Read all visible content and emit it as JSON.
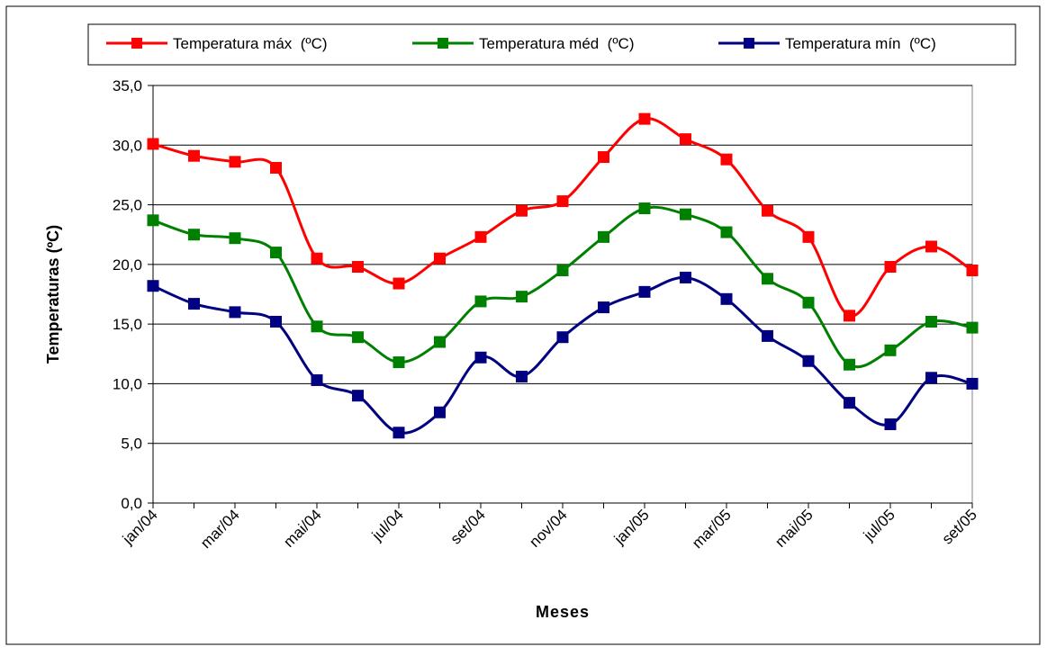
{
  "chart_data": {
    "type": "line",
    "categories": [
      "jan/04",
      null,
      "mar/04",
      null,
      "mai/04",
      null,
      "jul/04",
      null,
      "set/04",
      null,
      "nov/04",
      null,
      "jan/05",
      null,
      "mar/05",
      null,
      "mai/05",
      null,
      "jul/05",
      null,
      "set/05"
    ],
    "series": [
      {
        "name": "Temperatura máx  (ºC)",
        "color": "#ff0000",
        "values": [
          30.1,
          29.1,
          28.6,
          28.1,
          20.5,
          19.8,
          18.4,
          20.5,
          22.3,
          24.5,
          25.3,
          29.0,
          32.2,
          30.5,
          28.8,
          24.5,
          22.3,
          15.7,
          19.8,
          21.5,
          19.5
        ]
      },
      {
        "name": "Temperatura méd  (ºC)",
        "color": "#008000",
        "values": [
          23.7,
          22.5,
          22.2,
          21.0,
          14.8,
          13.9,
          11.8,
          13.5,
          16.9,
          17.3,
          19.5,
          22.3,
          24.7,
          24.2,
          22.7,
          18.8,
          16.8,
          11.6,
          12.8,
          15.2,
          14.7
        ]
      },
      {
        "name": "Temperatura mín  (ºC)",
        "color": "#000080",
        "values": [
          18.2,
          16.7,
          16.0,
          15.2,
          10.3,
          9.0,
          5.9,
          7.6,
          12.2,
          10.6,
          13.9,
          16.4,
          17.7,
          18.9,
          17.1,
          14.0,
          11.9,
          8.4,
          6.6,
          10.5,
          10.0
        ]
      }
    ],
    "x_label": "Meses",
    "y_label": "Temperaturas (ºC)",
    "ylim": [
      0,
      35
    ],
    "yticks": [
      {
        "value": 0,
        "label": "0,0"
      },
      {
        "value": 5,
        "label": "5,0"
      },
      {
        "value": 10,
        "label": "10,0"
      },
      {
        "value": 15,
        "label": "15,0"
      },
      {
        "value": 20,
        "label": "20,0"
      },
      {
        "value": 25,
        "label": "25,0"
      },
      {
        "value": 30,
        "label": "30,0"
      },
      {
        "value": 35,
        "label": "35,0"
      }
    ],
    "grid": true,
    "legend": "top"
  }
}
